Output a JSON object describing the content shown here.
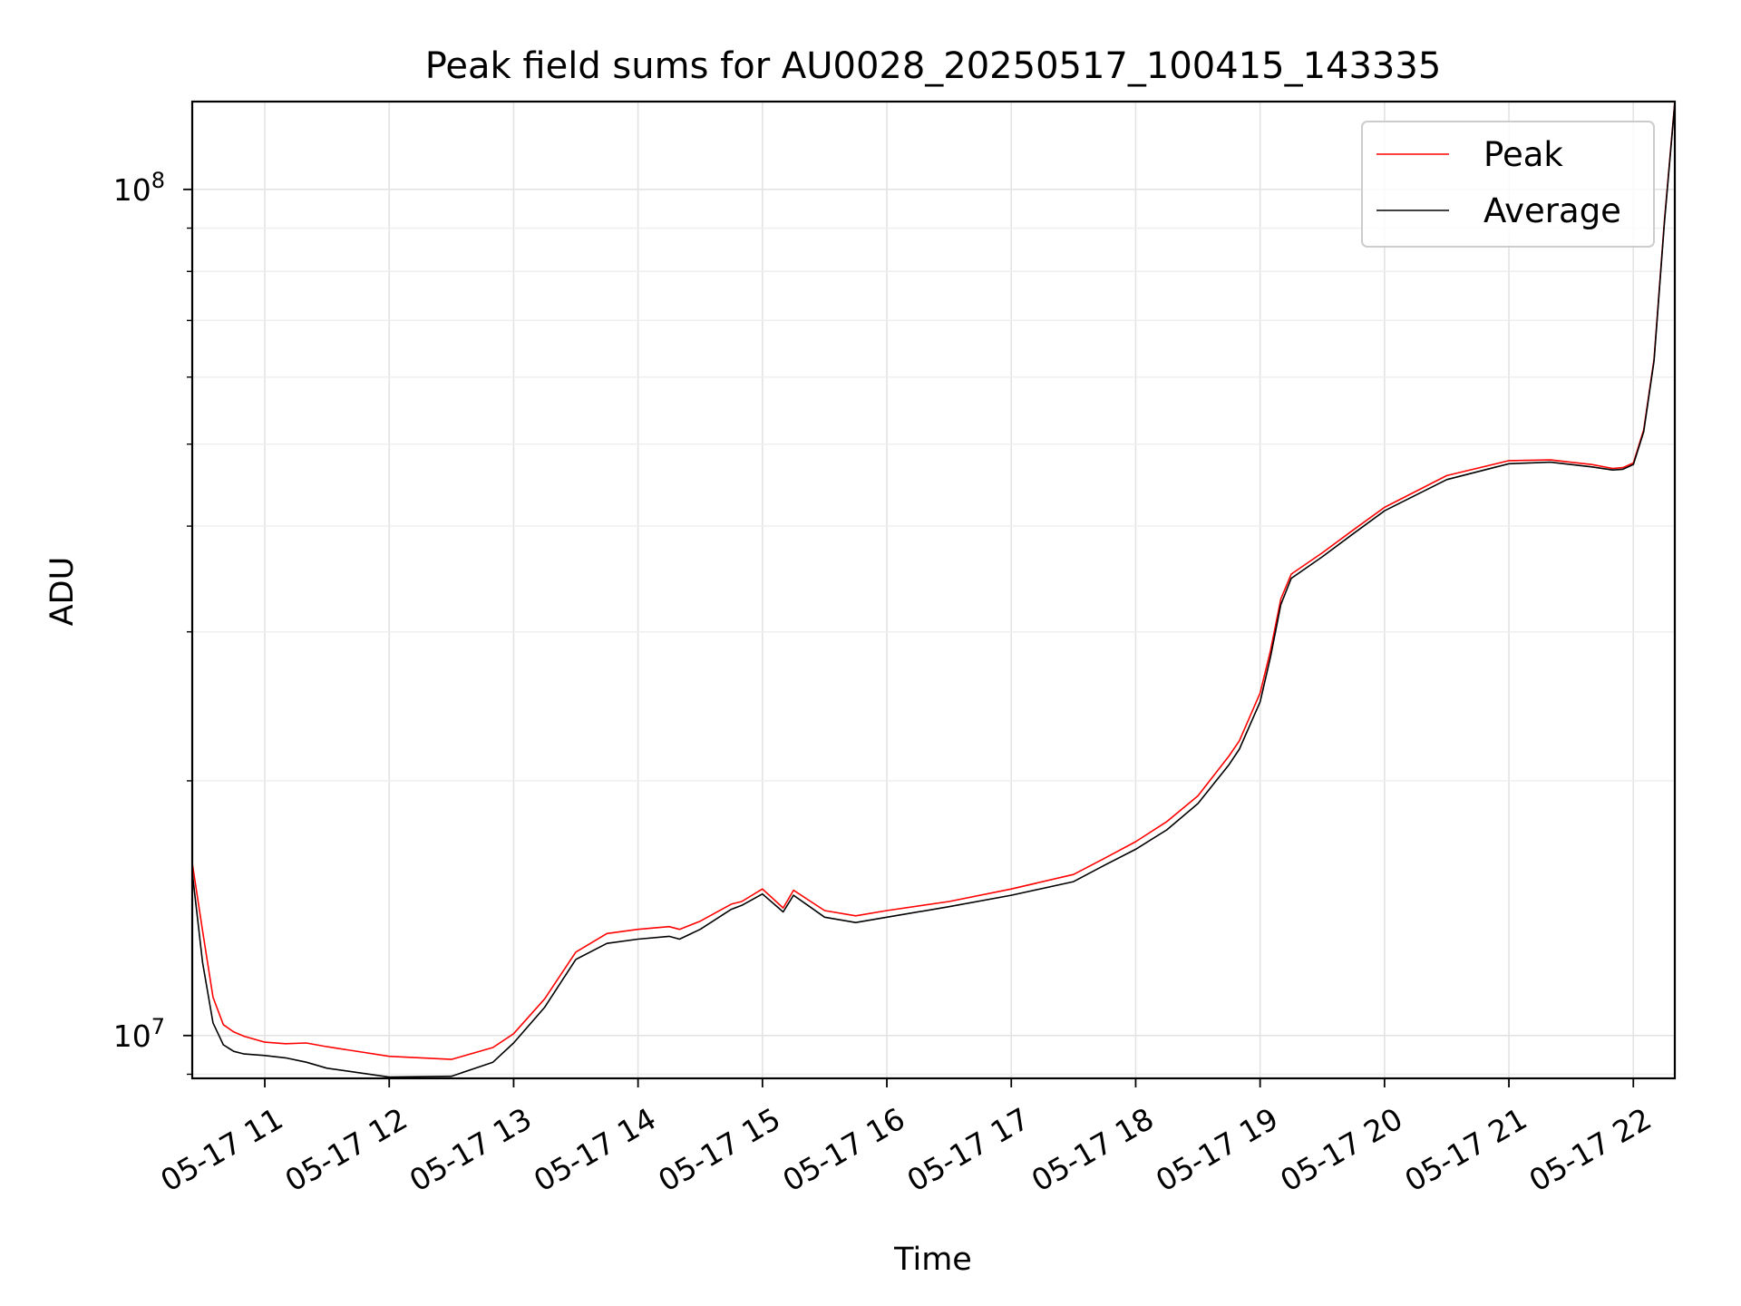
{
  "chart_data": {
    "type": "line",
    "title": "Peak field sums for AU0028_20250517_100415_143335",
    "xlabel": "Time",
    "ylabel": "ADU",
    "yscale": "log",
    "ylim": [
      8900000,
      127000000
    ],
    "xlim": [
      "2025-05-17T10:25",
      "2025-05-17T22:20"
    ],
    "x_ticks": [
      "05-17 11",
      "05-17 12",
      "05-17 13",
      "05-17 14",
      "05-17 15",
      "05-17 16",
      "05-17 17",
      "05-17 18",
      "05-17 19",
      "05-17 20",
      "05-17 21",
      "05-17 22"
    ],
    "y_ticks": [
      {
        "value": 10000000,
        "base": "10",
        "exp": "7"
      },
      {
        "value": 100000000,
        "base": "10",
        "exp": "8"
      }
    ],
    "grid": true,
    "legend_position": "top-right",
    "x": [
      "10:25",
      "10:30",
      "10:35",
      "10:40",
      "10:45",
      "10:50",
      "11:00",
      "11:10",
      "11:20",
      "11:30",
      "12:00",
      "12:30",
      "12:50",
      "13:00",
      "13:15",
      "13:30",
      "13:45",
      "14:00",
      "14:15",
      "14:20",
      "14:30",
      "14:45",
      "14:50",
      "15:00",
      "15:10",
      "15:15",
      "15:30",
      "15:45",
      "16:00",
      "16:30",
      "17:00",
      "17:30",
      "17:45",
      "18:00",
      "18:15",
      "18:30",
      "18:45",
      "18:50",
      "19:00",
      "19:05",
      "19:10",
      "19:15",
      "19:30",
      "19:45",
      "20:00",
      "20:30",
      "21:00",
      "21:20",
      "21:40",
      "21:50",
      "21:55",
      "22:00",
      "22:05",
      "22:10",
      "22:15",
      "22:20"
    ],
    "series": [
      {
        "name": "Peak",
        "color": "#ff0000",
        "values": [
          16000000,
          13300000,
          11100000,
          10300000,
          10100000,
          9980000,
          9820000,
          9780000,
          9800000,
          9700000,
          9450000,
          9370000,
          9680000,
          10050000,
          11050000,
          12550000,
          13200000,
          13350000,
          13450000,
          13350000,
          13650000,
          14300000,
          14400000,
          14900000,
          14150000,
          14850000,
          14050000,
          13850000,
          14050000,
          14400000,
          14900000,
          15500000,
          16200000,
          16950000,
          17900000,
          19200000,
          21400000,
          22300000,
          25400000,
          28500000,
          32800000,
          35100000,
          37200000,
          39600000,
          42100000,
          45900000,
          47800000,
          47900000,
          47300000,
          46800000,
          46900000,
          47500000,
          52000000,
          63000000,
          92000000,
          127000000
        ]
      },
      {
        "name": "Average",
        "color": "#000000",
        "values": [
          15600000,
          12200000,
          10350000,
          9750000,
          9580000,
          9510000,
          9470000,
          9410000,
          9300000,
          9150000,
          8930000,
          8950000,
          9300000,
          9800000,
          10800000,
          12300000,
          12850000,
          13000000,
          13100000,
          13000000,
          13350000,
          14100000,
          14250000,
          14700000,
          14000000,
          14650000,
          13800000,
          13600000,
          13800000,
          14200000,
          14650000,
          15200000,
          15900000,
          16600000,
          17500000,
          18800000,
          20900000,
          21800000,
          24800000,
          28000000,
          32300000,
          34700000,
          36800000,
          39200000,
          41700000,
          45400000,
          47400000,
          47600000,
          47000000,
          46600000,
          46700000,
          47300000,
          51700000,
          62700000,
          91500000,
          126500000
        ]
      }
    ]
  }
}
